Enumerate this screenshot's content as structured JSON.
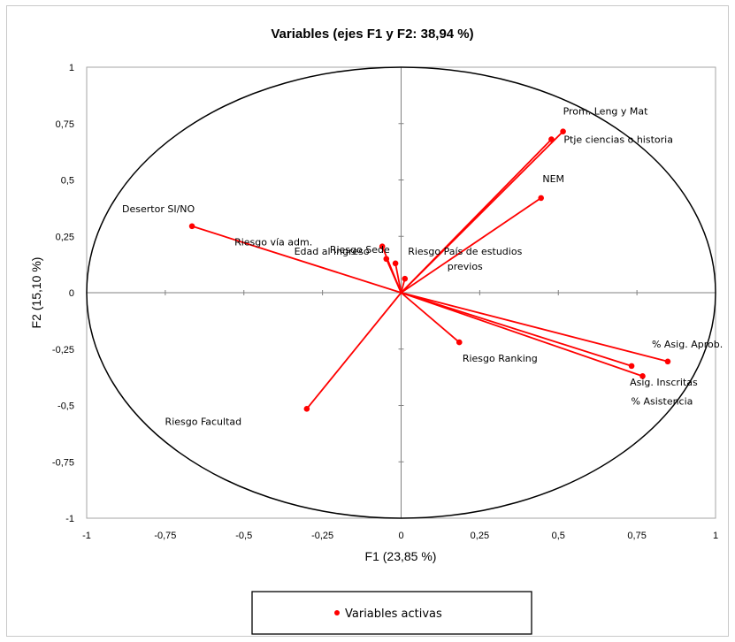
{
  "chart_data": {
    "type": "scatter",
    "title": "Variables (ejes F1 y F2: 38,94 %)",
    "xlabel": "F1 (23,85 %)",
    "ylabel": "F2 (15,10 %)",
    "xlim": [
      -1,
      1
    ],
    "ylim": [
      -1,
      1
    ],
    "xticks": [
      "-1",
      "-0,75",
      "-0,5",
      "-0,25",
      "0",
      "0,25",
      "0,5",
      "0,75",
      "1"
    ],
    "yticks": [
      "1",
      "0,75",
      "0,5",
      "0,25",
      "0",
      "-0,25",
      "-0,5",
      "-0,75",
      "-1"
    ],
    "correlation_circle": true,
    "legend": {
      "label": "Variables activas",
      "position": "bottom"
    },
    "series_color": "#ff0000",
    "points": [
      {
        "label": "Prom. Leng y Mat",
        "x": 0.515,
        "y": 0.715
      },
      {
        "label": "Ptje ciencias o historia",
        "x": 0.478,
        "y": 0.68
      },
      {
        "label": "NEM",
        "x": 0.445,
        "y": 0.42
      },
      {
        "label": "Desertor SI/NO",
        "x": -0.665,
        "y": 0.295
      },
      {
        "label": "Riesgo vía adm.",
        "x": -0.06,
        "y": 0.205
      },
      {
        "label": "Riesgo Sede",
        "x": -0.047,
        "y": 0.15
      },
      {
        "label": "Edad al ingreso",
        "x": -0.018,
        "y": 0.13
      },
      {
        "label": "Riesgo País de estudios previos",
        "x": 0.012,
        "y": 0.062
      },
      {
        "label": "Riesgo Ranking",
        "x": 0.185,
        "y": -0.22
      },
      {
        "label": "% Asig. Aprob.",
        "x": 0.848,
        "y": -0.305
      },
      {
        "label": "Asig. Inscritas",
        "x": 0.733,
        "y": -0.325
      },
      {
        "label": "% Asistencia",
        "x": 0.768,
        "y": -0.37
      },
      {
        "label": "Riesgo Facultad",
        "x": -0.3,
        "y": -0.515
      }
    ]
  }
}
